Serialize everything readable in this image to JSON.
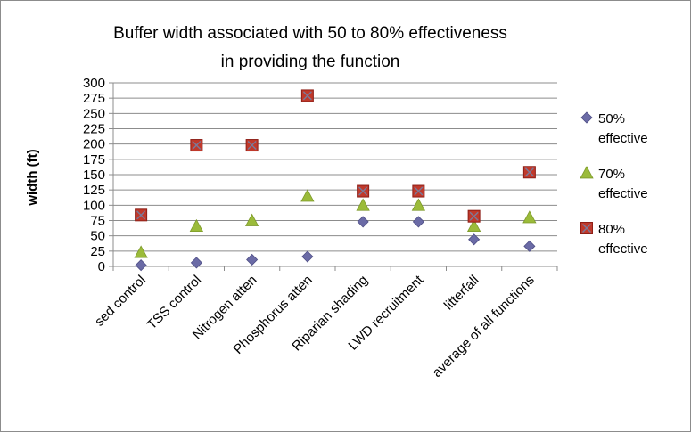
{
  "chart_data": {
    "type": "scatter",
    "title_lines": [
      "Buffer width associated with 50 to 80% effectiveness",
      "in providing the function"
    ],
    "xlabel": "",
    "ylabel": "width (ft)",
    "ylim": [
      0,
      300
    ],
    "yticks": [
      0,
      25,
      50,
      75,
      100,
      125,
      150,
      175,
      200,
      225,
      250,
      275,
      300
    ],
    "grid": true,
    "legend_position": "right",
    "categories": [
      "sed control",
      "TSS control",
      "Nitrogen atten",
      "Phosphorus atten",
      "Riparian shading",
      "LWD recruitment",
      "litterfall",
      "average of all functions"
    ],
    "series": [
      {
        "name_lines": [
          "50%",
          "effective"
        ],
        "marker": "diamond",
        "color": "#6b6ba6",
        "values": [
          2,
          6,
          11,
          16,
          73,
          73,
          44,
          33
        ]
      },
      {
        "name_lines": [
          "70%",
          "effective"
        ],
        "marker": "triangle",
        "color": "#9bbb3a",
        "values": [
          23,
          66,
          75,
          115,
          100,
          100,
          66,
          80
        ]
      },
      {
        "name_lines": [
          "80%",
          "effective"
        ],
        "marker": "square",
        "color": "#c0392b",
        "values": [
          84,
          198,
          198,
          279,
          123,
          123,
          82,
          154
        ]
      }
    ]
  }
}
